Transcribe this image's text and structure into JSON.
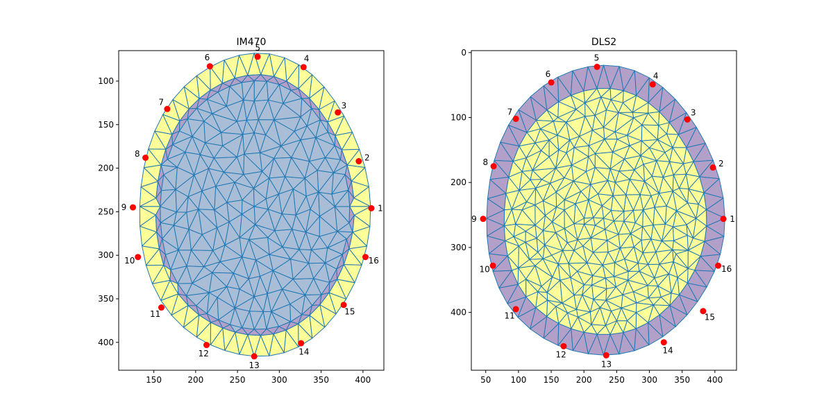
{
  "chart_data": [
    {
      "type": "mesh",
      "title": "IM470",
      "xlim": [
        108,
        425
      ],
      "ylim": [
        432,
        65
      ],
      "xticks": [
        150,
        200,
        250,
        300,
        350,
        400
      ],
      "yticks": [
        100,
        150,
        200,
        250,
        300,
        350,
        400
      ],
      "center": [
        270,
        244
      ],
      "outer_radii": {
        "rx": 138,
        "ry_top": 174,
        "ry_bottom": 174
      },
      "mid_ratio": 0.86,
      "inner_ratio": 0.82,
      "colors": {
        "outer_ring": "#ffff99",
        "middle_ring": "#b3a0c8",
        "interior": "#a9bed6",
        "edge": "#1f77b4",
        "electrode": "#ff0000"
      },
      "electrodes": [
        {
          "label": "1",
          "x": 410,
          "y": 246
        },
        {
          "label": "2",
          "x": 395,
          "y": 192
        },
        {
          "label": "3",
          "x": 370,
          "y": 136
        },
        {
          "label": "4",
          "x": 329,
          "y": 84
        },
        {
          "label": "5",
          "x": 274,
          "y": 72
        },
        {
          "label": "6",
          "x": 217,
          "y": 83
        },
        {
          "label": "7",
          "x": 166,
          "y": 132
        },
        {
          "label": "8",
          "x": 140,
          "y": 188
        },
        {
          "label": "9",
          "x": 125,
          "y": 245
        },
        {
          "label": "10",
          "x": 131,
          "y": 302
        },
        {
          "label": "11",
          "x": 159,
          "y": 360
        },
        {
          "label": "12",
          "x": 213,
          "y": 403
        },
        {
          "label": "13",
          "x": 270,
          "y": 416
        },
        {
          "label": "14",
          "x": 326,
          "y": 401
        },
        {
          "label": "15",
          "x": 377,
          "y": 357
        },
        {
          "label": "16",
          "x": 403,
          "y": 302
        }
      ]
    },
    {
      "type": "mesh",
      "title": "DLS2",
      "xlim": [
        28,
        433
      ],
      "ylim": [
        489,
        -3
      ],
      "xticks": [
        50,
        100,
        150,
        200,
        250,
        300,
        350,
        400
      ],
      "yticks": [
        0,
        100,
        200,
        300,
        400
      ],
      "center": [
        230,
        255
      ],
      "outer_radii": {
        "rx": 182,
        "ry_top": 234,
        "ry_bottom": 212
      },
      "mid_ratio": 1.0,
      "inner_ratio": 0.85,
      "colors": {
        "outer_ring": "#b3a0c8",
        "middle_ring": "#b3a0c8",
        "interior": "#ffff99",
        "edge": "#1f77b4",
        "electrode": "#ff0000"
      },
      "electrodes": [
        {
          "label": "1",
          "x": 413,
          "y": 256
        },
        {
          "label": "2",
          "x": 397,
          "y": 177
        },
        {
          "label": "3",
          "x": 358,
          "y": 103
        },
        {
          "label": "4",
          "x": 305,
          "y": 49
        },
        {
          "label": "5",
          "x": 220,
          "y": 22
        },
        {
          "label": "6",
          "x": 150,
          "y": 46
        },
        {
          "label": "7",
          "x": 96,
          "y": 102
        },
        {
          "label": "8",
          "x": 62,
          "y": 175
        },
        {
          "label": "9",
          "x": 46,
          "y": 256
        },
        {
          "label": "10",
          "x": 61,
          "y": 328
        },
        {
          "label": "11",
          "x": 96,
          "y": 395
        },
        {
          "label": "12",
          "x": 169,
          "y": 452
        },
        {
          "label": "13",
          "x": 234,
          "y": 466
        },
        {
          "label": "14",
          "x": 322,
          "y": 446
        },
        {
          "label": "15",
          "x": 382,
          "y": 398
        },
        {
          "label": "16",
          "x": 405,
          "y": 328
        }
      ]
    }
  ]
}
